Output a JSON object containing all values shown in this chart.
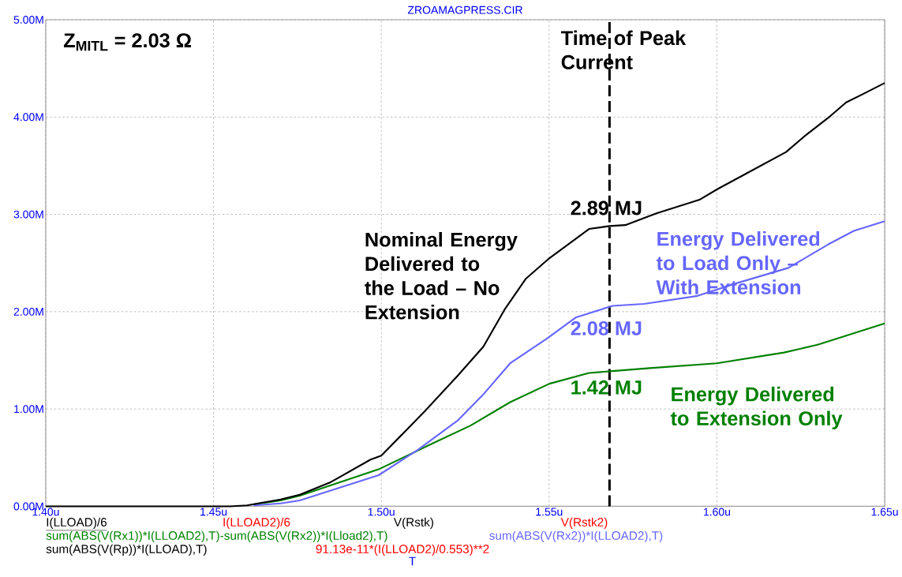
{
  "chart_data": {
    "type": "line",
    "title": "ZROAMAGPRESS.CIR",
    "xlim": [
      1.4,
      1.65
    ],
    "ylim": [
      0,
      5
    ],
    "xticks": [
      {
        "value": 1.4,
        "label": "1.40u"
      },
      {
        "value": 1.45,
        "label": "1.45u"
      },
      {
        "value": 1.5,
        "label": "1.50u"
      },
      {
        "value": 1.55,
        "label": "1.55u"
      },
      {
        "value": 1.6,
        "label": "1.60u"
      },
      {
        "value": 1.65,
        "label": "1.65u"
      }
    ],
    "yticks": [
      {
        "value": 0,
        "label": "0.00M"
      },
      {
        "value": 1,
        "label": "1.00M"
      },
      {
        "value": 2,
        "label": "2.00M"
      },
      {
        "value": 3,
        "label": "3.00M"
      },
      {
        "value": 4,
        "label": "4.00M"
      },
      {
        "value": 5,
        "label": "5.00M"
      }
    ],
    "grid": true,
    "series": [
      {
        "name": "Nominal Energy Delivered to the Load – No Extension",
        "color": "#000000",
        "x": [
          1.4,
          1.45,
          1.455,
          1.46,
          1.465,
          1.47,
          1.4757,
          1.485,
          1.4968,
          1.5,
          1.5133,
          1.5227,
          1.5304,
          1.5367,
          1.5431,
          1.5501,
          1.5619,
          1.568,
          1.5727,
          1.582,
          1.5948,
          1.6002,
          1.6088,
          1.6206,
          1.626,
          1.6338,
          1.6385,
          1.6432,
          1.65
        ],
        "values": [
          0,
          0,
          0,
          0.01,
          0.04,
          0.07,
          0.12,
          0.25,
          0.48,
          0.52,
          0.99,
          1.34,
          1.64,
          2.02,
          2.34,
          2.55,
          2.85,
          2.88,
          2.89,
          3.01,
          3.15,
          3.26,
          3.42,
          3.64,
          3.8,
          4.01,
          4.15,
          4.23,
          4.35
        ]
      },
      {
        "name": "Energy Delivered to Load Only – With Extension",
        "color": "#6666ff",
        "x": [
          1.462,
          1.47,
          1.4757,
          1.4992,
          1.5109,
          1.5227,
          1.5304,
          1.5384,
          1.5492,
          1.5579,
          1.5689,
          1.5783,
          1.5939,
          1.6056,
          1.6213,
          1.6331,
          1.6408,
          1.65
        ],
        "values": [
          0.01,
          0.03,
          0.06,
          0.32,
          0.58,
          0.88,
          1.15,
          1.47,
          1.72,
          1.94,
          2.06,
          2.08,
          2.16,
          2.29,
          2.45,
          2.69,
          2.83,
          2.93
        ]
      },
      {
        "name": "Energy Delivered to Extension Only",
        "color": "#008000",
        "x": [
          1.462,
          1.47,
          1.4757,
          1.4992,
          1.5149,
          1.5266,
          1.5384,
          1.5501,
          1.5619,
          1.5689,
          1.58,
          1.6,
          1.62,
          1.63,
          1.65
        ],
        "values": [
          0.02,
          0.06,
          0.11,
          0.38,
          0.64,
          0.83,
          1.07,
          1.26,
          1.37,
          1.39,
          1.42,
          1.47,
          1.58,
          1.66,
          1.88
        ]
      }
    ],
    "ref_lines": [
      {
        "axis": "x",
        "value": 1.568,
        "label": "Time of Peak Current",
        "color": "#000000",
        "line_style": "dashed"
      }
    ],
    "annotations": [
      "Z$_{MITL}$ = 2.03 Ω",
      "2.89 MJ",
      "2.08 MJ",
      "1.42 MJ",
      "I(LLOAD)/6",
      "I(LLOAD2)/6",
      "V(Rstk)",
      "V(Rstk2)",
      "sum(ABS(V(Rx1))*I(LLOAD2),T)-sum(ABS(V(Rx2))*I(Lload2),T)",
      "sum(ABS(V(Rx2))*I(LLOAD2),T)",
      "sum(ABS(V(Rp))*I(LLOAD),T)",
      "91.13e-11*(I(LLOAD2)/0.553)**2",
      "T"
    ]
  }
}
